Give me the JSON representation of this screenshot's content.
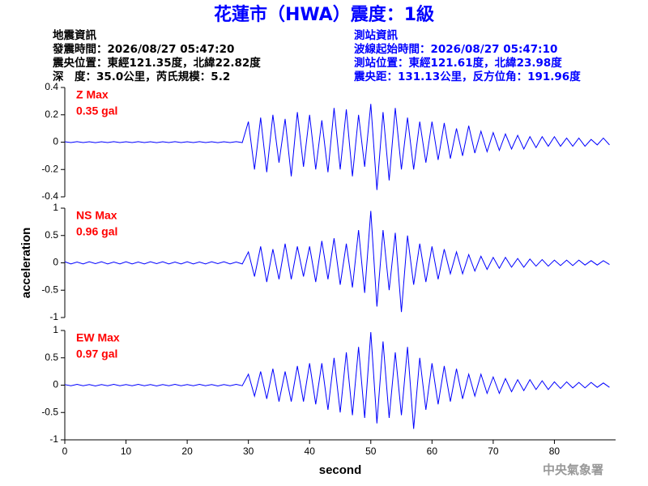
{
  "header": {
    "title": "花蓮市（HWA）震度：1級",
    "left": [
      "地震資訊",
      "發震時間：2026/08/27 05:47:20",
      "震央位置：東經121.35度，北緯22.82度",
      "深　度：35.0公里，芮氏規模：5.2"
    ],
    "right": [
      "測站資訊",
      "波線起始時間：2026/08/27 05:47:10",
      "測站位置：東經121.61度，北緯23.98度",
      "震央距：131.13公里，反方位角：191.96度"
    ],
    "watermark": "中央氣象署"
  },
  "chart_data": [
    {
      "type": "line",
      "annotations": [
        "Z Max",
        "0.35 gal"
      ],
      "color": "#0000ff",
      "ylim": [
        -0.4,
        0.4
      ],
      "yticks": [
        -0.4,
        -0.2,
        0,
        0.2,
        0.4
      ],
      "xlim": [
        0,
        90
      ],
      "x": [
        0,
        1,
        2,
        3,
        4,
        5,
        6,
        7,
        8,
        9,
        10,
        11,
        12,
        13,
        14,
        15,
        16,
        17,
        18,
        19,
        20,
        21,
        22,
        23,
        24,
        25,
        26,
        27,
        28,
        29,
        30,
        31,
        32,
        33,
        34,
        35,
        36,
        37,
        38,
        39,
        40,
        41,
        42,
        43,
        44,
        45,
        46,
        47,
        48,
        49,
        50,
        51,
        52,
        53,
        54,
        55,
        56,
        57,
        58,
        59,
        60,
        61,
        62,
        63,
        64,
        65,
        66,
        67,
        68,
        69,
        70,
        71,
        72,
        73,
        74,
        75,
        76,
        77,
        78,
        79,
        80,
        81,
        82,
        83,
        84,
        85,
        86,
        87,
        88,
        89
      ],
      "values": [
        0.003,
        -0.003,
        0.004,
        -0.003,
        0.003,
        -0.004,
        0.003,
        -0.003,
        0.004,
        -0.003,
        0.003,
        -0.003,
        0.004,
        -0.003,
        0.003,
        -0.004,
        0.003,
        -0.003,
        0.004,
        -0.003,
        0.003,
        -0.003,
        0.004,
        -0.003,
        0.003,
        -0.004,
        0.003,
        -0.003,
        0.004,
        -0.003,
        0.15,
        -0.2,
        0.18,
        -0.22,
        0.2,
        -0.15,
        0.17,
        -0.25,
        0.22,
        -0.18,
        0.2,
        -0.2,
        0.16,
        -0.22,
        0.25,
        -0.2,
        0.24,
        -0.25,
        0.2,
        -0.18,
        0.28,
        -0.35,
        0.22,
        -0.28,
        0.25,
        -0.2,
        0.18,
        -0.2,
        0.15,
        -0.15,
        0.15,
        -0.13,
        0.14,
        -0.12,
        0.1,
        -0.1,
        0.12,
        -0.08,
        0.08,
        -0.07,
        0.07,
        -0.06,
        0.06,
        -0.05,
        0.05,
        -0.05,
        0.04,
        -0.04,
        0.04,
        -0.03,
        0.04,
        -0.03,
        0.03,
        -0.03,
        0.03,
        -0.03,
        0.02,
        -0.02,
        0.03,
        -0.02
      ]
    },
    {
      "type": "line",
      "annotations": [
        "NS Max",
        "0.96 gal"
      ],
      "color": "#0000ff",
      "y_label": "acceleration",
      "ylim": [
        -1,
        1
      ],
      "yticks": [
        -1,
        -0.5,
        0,
        0.5,
        1
      ],
      "xlim": [
        0,
        90
      ],
      "x": [
        0,
        1,
        2,
        3,
        4,
        5,
        6,
        7,
        8,
        9,
        10,
        11,
        12,
        13,
        14,
        15,
        16,
        17,
        18,
        19,
        20,
        21,
        22,
        23,
        24,
        25,
        26,
        27,
        28,
        29,
        30,
        31,
        32,
        33,
        34,
        35,
        36,
        37,
        38,
        39,
        40,
        41,
        42,
        43,
        44,
        45,
        46,
        47,
        48,
        49,
        50,
        51,
        52,
        53,
        54,
        55,
        56,
        57,
        58,
        59,
        60,
        61,
        62,
        63,
        64,
        65,
        66,
        67,
        68,
        69,
        70,
        71,
        72,
        73,
        74,
        75,
        76,
        77,
        78,
        79,
        80,
        81,
        82,
        83,
        84,
        85,
        86,
        87,
        88,
        89
      ],
      "values": [
        0.02,
        -0.02,
        0.015,
        -0.02,
        0.02,
        -0.015,
        0.02,
        -0.02,
        0.015,
        -0.02,
        0.02,
        -0.02,
        0.015,
        -0.02,
        0.02,
        -0.015,
        0.02,
        -0.02,
        0.015,
        -0.02,
        0.02,
        -0.02,
        0.015,
        -0.02,
        0.02,
        -0.015,
        0.02,
        -0.02,
        0.015,
        -0.02,
        0.2,
        -0.25,
        0.3,
        -0.35,
        0.25,
        -0.3,
        0.35,
        -0.3,
        0.3,
        -0.25,
        0.3,
        -0.35,
        0.4,
        -0.3,
        0.45,
        -0.4,
        0.35,
        -0.45,
        0.6,
        -0.55,
        0.95,
        -0.8,
        0.6,
        -0.5,
        0.55,
        -0.9,
        0.5,
        -0.4,
        0.35,
        -0.35,
        0.3,
        -0.3,
        0.25,
        -0.2,
        0.2,
        -0.2,
        0.15,
        -0.15,
        0.12,
        -0.12,
        0.1,
        -0.1,
        0.1,
        -0.08,
        0.08,
        -0.08,
        0.07,
        -0.06,
        0.06,
        -0.06,
        0.05,
        -0.05,
        0.05,
        -0.05,
        0.05,
        -0.04,
        0.04,
        -0.04,
        0.04,
        -0.03
      ]
    },
    {
      "type": "line",
      "annotations": [
        "EW Max",
        "0.97 gal"
      ],
      "color": "#0000ff",
      "x_label": "second",
      "ylim": [
        -1,
        1
      ],
      "yticks": [
        -1,
        -0.5,
        0,
        0.5,
        1
      ],
      "xlim": [
        0,
        90
      ],
      "xticks": [
        0,
        10,
        20,
        30,
        40,
        50,
        60,
        70,
        80
      ],
      "x": [
        0,
        1,
        2,
        3,
        4,
        5,
        6,
        7,
        8,
        9,
        10,
        11,
        12,
        13,
        14,
        15,
        16,
        17,
        18,
        19,
        20,
        21,
        22,
        23,
        24,
        25,
        26,
        27,
        28,
        29,
        30,
        31,
        32,
        33,
        34,
        35,
        36,
        37,
        38,
        39,
        40,
        41,
        42,
        43,
        44,
        45,
        46,
        47,
        48,
        49,
        50,
        51,
        52,
        53,
        54,
        55,
        56,
        57,
        58,
        59,
        60,
        61,
        62,
        63,
        64,
        65,
        66,
        67,
        68,
        69,
        70,
        71,
        72,
        73,
        74,
        75,
        76,
        77,
        78,
        79,
        80,
        81,
        82,
        83,
        84,
        85,
        86,
        87,
        88,
        89
      ],
      "values": [
        0.01,
        -0.01,
        0.015,
        -0.01,
        0.01,
        -0.015,
        0.01,
        -0.01,
        0.015,
        -0.01,
        0.01,
        -0.01,
        0.015,
        -0.01,
        0.01,
        -0.015,
        0.01,
        -0.01,
        0.015,
        -0.01,
        0.01,
        -0.01,
        0.015,
        -0.01,
        0.01,
        -0.015,
        0.01,
        -0.01,
        0.015,
        -0.01,
        0.2,
        -0.2,
        0.25,
        -0.25,
        0.3,
        -0.3,
        0.25,
        -0.3,
        0.35,
        -0.3,
        0.4,
        -0.35,
        0.4,
        -0.45,
        0.5,
        -0.5,
        0.6,
        -0.55,
        0.7,
        -0.6,
        0.97,
        -0.7,
        0.8,
        -0.6,
        0.6,
        -0.55,
        0.7,
        -0.8,
        0.5,
        -0.45,
        0.4,
        -0.35,
        0.35,
        -0.3,
        0.3,
        -0.25,
        0.2,
        -0.2,
        0.2,
        -0.15,
        0.15,
        -0.15,
        0.12,
        -0.12,
        0.1,
        -0.1,
        0.1,
        -0.08,
        0.08,
        -0.08,
        0.06,
        -0.06,
        0.06,
        -0.05,
        0.05,
        -0.05,
        0.05,
        -0.04,
        0.04,
        -0.04
      ]
    }
  ]
}
